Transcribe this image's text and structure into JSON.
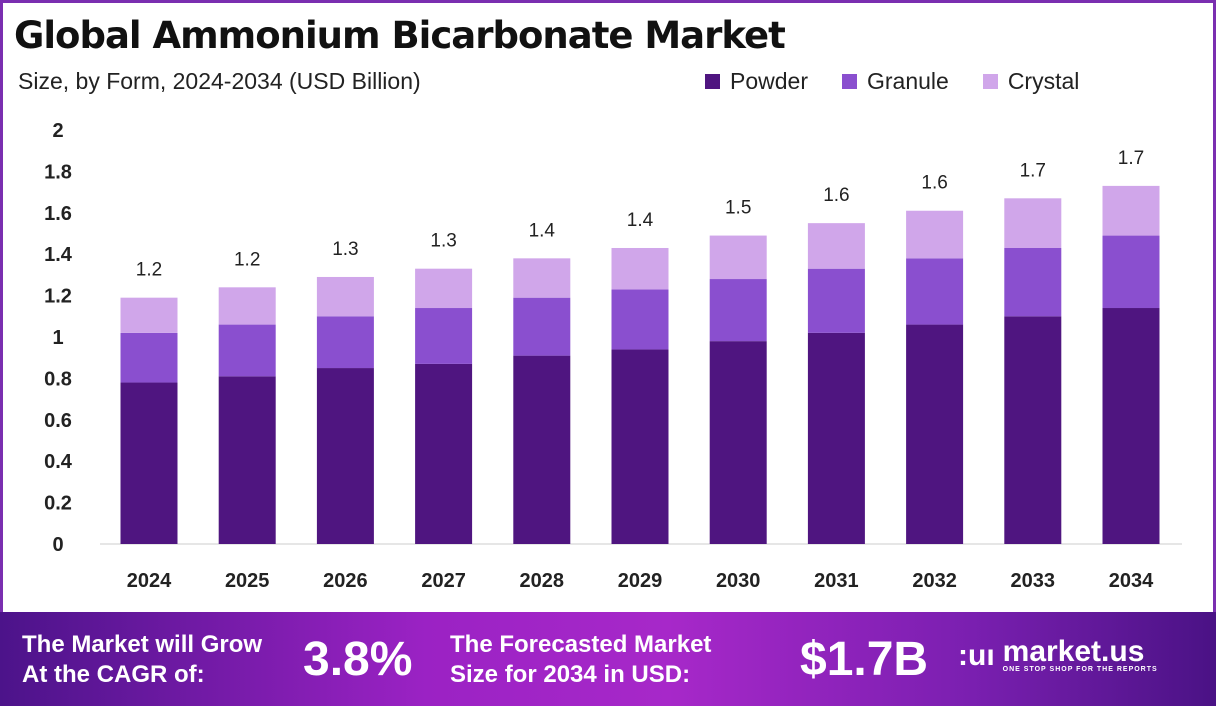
{
  "title": "Global Ammonium Bicarbonate Market",
  "subtitle": "Size, by Form, 2024-2034 (USD Billion)",
  "colors": {
    "Powder": "#4f1580",
    "Granule": "#8a4fcf",
    "Crystal": "#d0a6ea",
    "frame": "#7a2fb0"
  },
  "chart_data": {
    "type": "bar",
    "stacked": true,
    "title": "Global Ammonium Bicarbonate Market",
    "subtitle": "Size, by Form, 2024-2034 (USD Billion)",
    "categories": [
      "2024",
      "2025",
      "2026",
      "2027",
      "2028",
      "2029",
      "2030",
      "2031",
      "2032",
      "2033",
      "2034"
    ],
    "series": [
      {
        "name": "Powder",
        "values": [
          0.78,
          0.81,
          0.85,
          0.87,
          0.91,
          0.94,
          0.98,
          1.02,
          1.06,
          1.1,
          1.14
        ]
      },
      {
        "name": "Granule",
        "values": [
          0.24,
          0.25,
          0.25,
          0.27,
          0.28,
          0.29,
          0.3,
          0.31,
          0.32,
          0.33,
          0.35
        ]
      },
      {
        "name": "Crystal",
        "values": [
          0.17,
          0.18,
          0.19,
          0.19,
          0.19,
          0.2,
          0.21,
          0.22,
          0.23,
          0.24,
          0.24
        ]
      }
    ],
    "totals_labels": [
      "1.2",
      "1.2",
      "1.3",
      "1.3",
      "1.4",
      "1.4",
      "1.5",
      "1.6",
      "1.6",
      "1.7",
      "1.7"
    ],
    "yticks": [
      "0",
      "0.2",
      "0.4",
      "0.6",
      "0.8",
      "1",
      "1.2",
      "1.4",
      "1.6",
      "1.8",
      "2"
    ],
    "ylim": [
      0,
      2
    ],
    "grid": false,
    "legend": "top-right"
  },
  "footer": {
    "cagr_label_1": "The Market will Grow",
    "cagr_label_2": "At the CAGR of:",
    "cagr_value": "3.8%",
    "forecast_label_1": "The Forecasted Market",
    "forecast_label_2": "Size for 2034 in USD:",
    "forecast_value": "$1.7B",
    "logo_brand": "market.us",
    "logo_tagline": "ONE STOP SHOP FOR THE REPORTS"
  }
}
